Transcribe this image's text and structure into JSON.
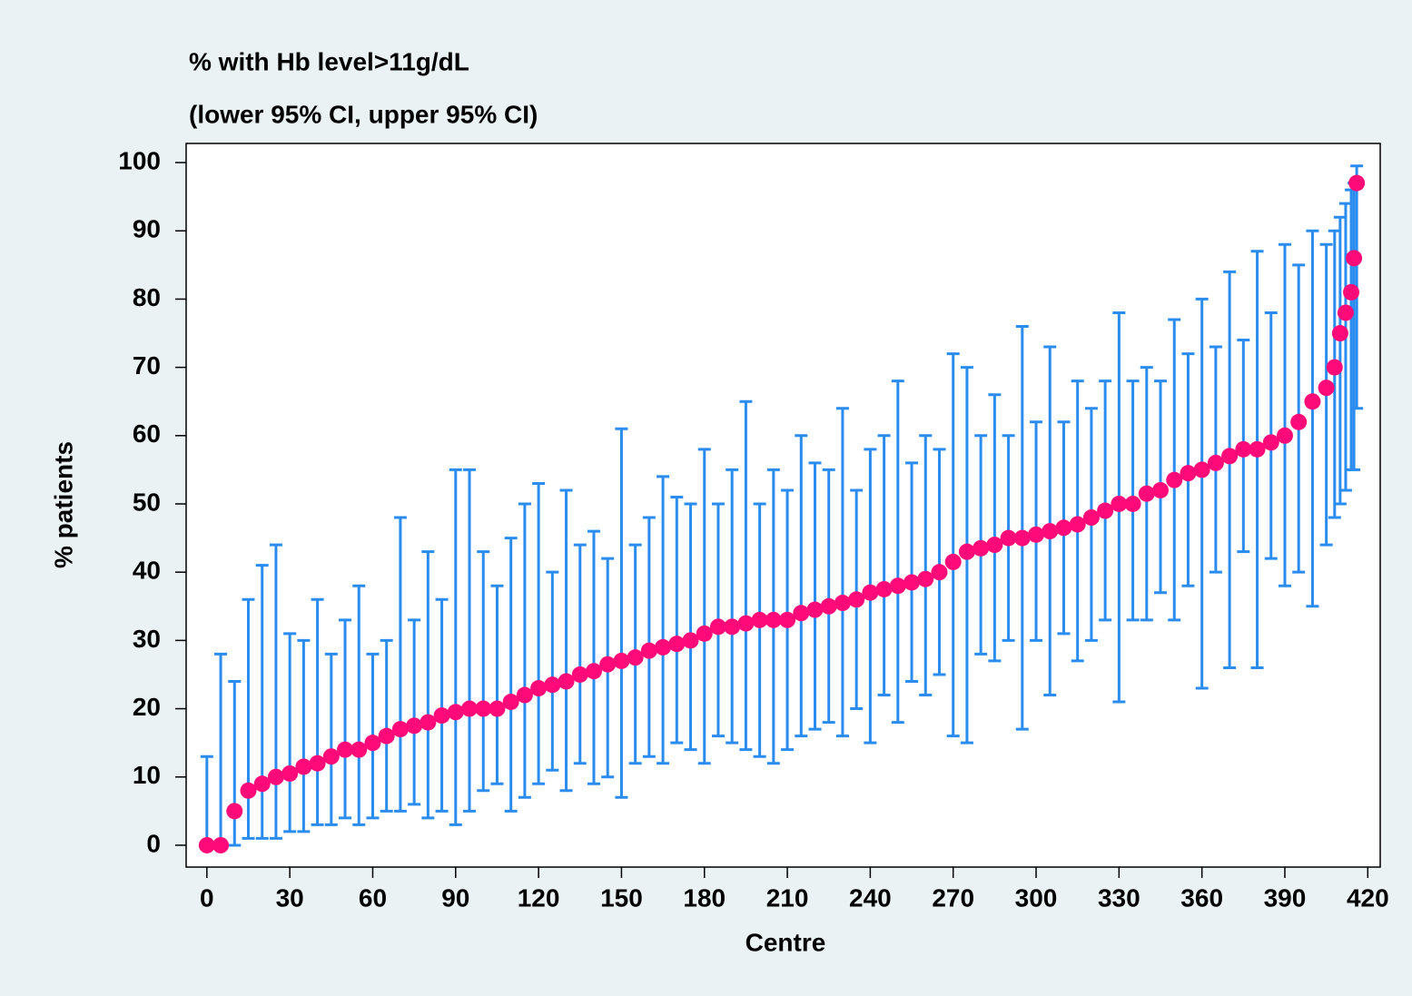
{
  "chart_data": {
    "type": "errorbar",
    "title": "% with Hb level>11g/dL",
    "subtitle": "(lower 95% CI, upper 95% CI)",
    "x_label": "Centre",
    "y_label": "% patients",
    "color": "#ff0a78",
    "error_color": "#2b8cf0",
    "xlim": [
      -7.5,
      424.5
    ],
    "ylim": [
      -3.2,
      102.8
    ],
    "xticks": [
      0,
      30,
      60,
      90,
      120,
      150,
      180,
      210,
      240,
      270,
      300,
      330,
      360,
      390,
      420
    ],
    "yticks": [
      0,
      10,
      20,
      30,
      40,
      50,
      60,
      70,
      80,
      90,
      100
    ],
    "grid": false,
    "x": [
      0,
      5,
      10,
      15,
      20,
      25,
      30,
      35,
      40,
      45,
      50,
      55,
      60,
      65,
      70,
      75,
      80,
      85,
      90,
      95,
      100,
      105,
      110,
      115,
      120,
      125,
      130,
      135,
      140,
      145,
      150,
      155,
      160,
      165,
      170,
      175,
      180,
      185,
      190,
      195,
      200,
      205,
      210,
      215,
      220,
      225,
      230,
      235,
      240,
      245,
      250,
      255,
      260,
      265,
      270,
      275,
      280,
      285,
      290,
      295,
      300,
      305,
      310,
      315,
      320,
      325,
      330,
      335,
      340,
      345,
      350,
      355,
      360,
      365,
      370,
      375,
      380,
      385,
      390,
      395,
      400,
      405,
      408,
      410,
      412,
      414,
      415,
      416
    ],
    "values": [
      0,
      0,
      5,
      8,
      9,
      10,
      10.5,
      11.5,
      12,
      13,
      14,
      14,
      15,
      16,
      17,
      17.5,
      18,
      19,
      19.5,
      20,
      20,
      20,
      21,
      22,
      23,
      23.5,
      24,
      25,
      25.5,
      26.5,
      27,
      27.5,
      28.5,
      29,
      29.5,
      30,
      31,
      32,
      32,
      32.5,
      33,
      33,
      33,
      34,
      34.5,
      35,
      35.5,
      36,
      37,
      37.5,
      38,
      38.5,
      39,
      40,
      41.5,
      43,
      43.5,
      44,
      45,
      45,
      45.5,
      46,
      46.5,
      47,
      48,
      49,
      50,
      50,
      51.5,
      52,
      53.5,
      54.5,
      55,
      56,
      57,
      58,
      58,
      59,
      60,
      62,
      65,
      67,
      70,
      75,
      78,
      81,
      86,
      97
    ],
    "lower": [
      0,
      0,
      0,
      1,
      1,
      1,
      2,
      2,
      3,
      3,
      4,
      3,
      4,
      5,
      5,
      6,
      4,
      5,
      3,
      5,
      8,
      9,
      5,
      7,
      9,
      11,
      8,
      12,
      9,
      10,
      7,
      12,
      13,
      12,
      15,
      14,
      12,
      16,
      15,
      14,
      13,
      12,
      14,
      16,
      17,
      18,
      16,
      20,
      15,
      22,
      18,
      24,
      22,
      25,
      16,
      15,
      28,
      27,
      30,
      17,
      30,
      22,
      31,
      27,
      30,
      33,
      21,
      33,
      33,
      37,
      33,
      38,
      23,
      40,
      26,
      43,
      26,
      42,
      38,
      40,
      35,
      44,
      48,
      50,
      52,
      55,
      55,
      64
    ],
    "upper": [
      13,
      28,
      24,
      36,
      41,
      44,
      31,
      30,
      36,
      28,
      33,
      38,
      28,
      30,
      48,
      33,
      43,
      36,
      55,
      55,
      43,
      38,
      45,
      50,
      53,
      40,
      52,
      44,
      46,
      42,
      61,
      44,
      48,
      54,
      51,
      50,
      58,
      50,
      55,
      65,
      50,
      55,
      52,
      60,
      56,
      55,
      64,
      52,
      58,
      60,
      68,
      56,
      60,
      58,
      72,
      70,
      60,
      66,
      60,
      76,
      62,
      73,
      62,
      68,
      64,
      68,
      78,
      68,
      70,
      68,
      77,
      72,
      80,
      73,
      84,
      74,
      87,
      78,
      88,
      85,
      90,
      88,
      90,
      92,
      94,
      96,
      97,
      99.5
    ]
  }
}
